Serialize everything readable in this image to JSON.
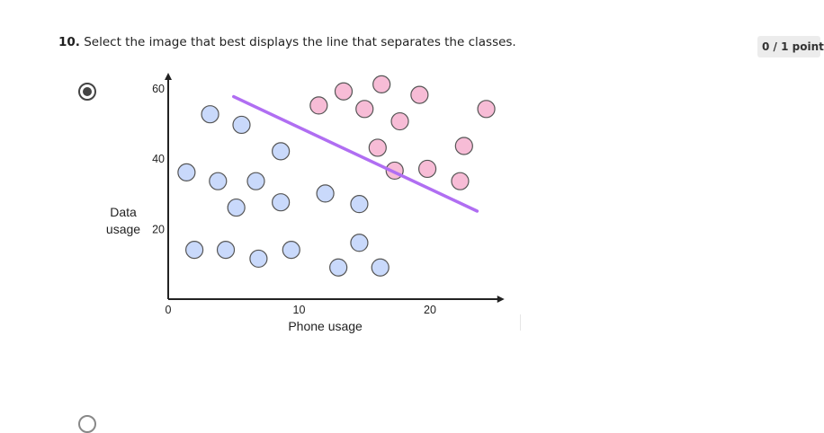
{
  "question": {
    "number": "10.",
    "text": "Select the image that best displays the line that separates the classes."
  },
  "score": "0 / 1 point",
  "option": {
    "selected": true
  },
  "chart_data": {
    "type": "scatter",
    "xlabel": "Phone usage",
    "ylabel_lines": [
      "Data",
      "usage"
    ],
    "xlim": [
      0,
      25
    ],
    "ylim": [
      0,
      63
    ],
    "x_ticks": [
      {
        "value": 0,
        "label": "0"
      },
      {
        "value": 10,
        "label": "10"
      },
      {
        "value": 20,
        "label": "20"
      }
    ],
    "y_ticks": [
      {
        "value": 20,
        "label": "20"
      },
      {
        "value": 40,
        "label": "40"
      },
      {
        "value": 60,
        "label": "60"
      }
    ],
    "colors": {
      "class_a_fill": "#c9d9fb",
      "class_a_stroke": "#555555",
      "class_b_fill": "#f7bcd6",
      "class_b_stroke": "#555555",
      "line": "#b06ef2",
      "axis": "#222222"
    },
    "series": [
      {
        "class": "a",
        "points": [
          [
            3.2,
            52.5
          ],
          [
            1.4,
            36.0
          ],
          [
            5.6,
            49.5
          ],
          [
            3.8,
            33.5
          ],
          [
            6.7,
            33.5
          ],
          [
            8.6,
            42.0
          ],
          [
            5.2,
            26.0
          ],
          [
            8.6,
            27.5
          ],
          [
            12.0,
            30.0
          ],
          [
            14.6,
            27.0
          ],
          [
            2.0,
            14.0
          ],
          [
            4.4,
            14.0
          ],
          [
            6.9,
            11.5
          ],
          [
            9.4,
            14.0
          ],
          [
            14.6,
            16.0
          ],
          [
            13.0,
            9.0
          ],
          [
            16.2,
            9.0
          ]
        ]
      },
      {
        "class": "b",
        "points": [
          [
            11.5,
            55.0
          ],
          [
            13.4,
            59.0
          ],
          [
            16.3,
            61.0
          ],
          [
            15.0,
            54.0
          ],
          [
            19.2,
            58.0
          ],
          [
            17.7,
            50.5
          ],
          [
            16.0,
            43.0
          ],
          [
            22.6,
            43.5
          ],
          [
            24.3,
            54.0
          ],
          [
            17.3,
            36.5
          ],
          [
            19.8,
            37.0
          ],
          [
            22.3,
            33.5
          ]
        ]
      }
    ],
    "separator": {
      "from": [
        5.0,
        57.5
      ],
      "to": [
        23.6,
        25.0
      ]
    }
  }
}
